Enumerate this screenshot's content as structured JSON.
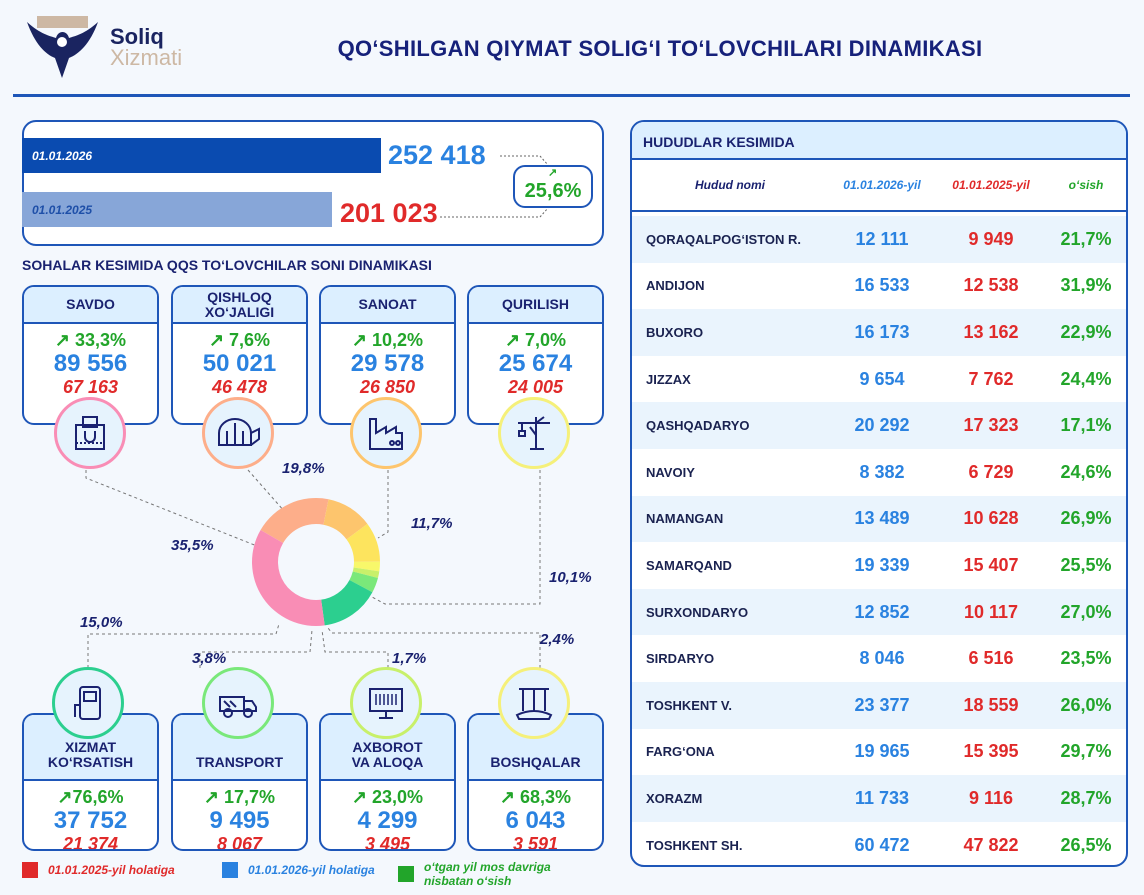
{
  "header": {
    "title": "QO‘SHILGAN QIYMAT SOLIG‘I TO‘LOVCHILARI DINAMIKASI",
    "logo": {
      "line1": "Soliq",
      "line2": "Xizmati"
    }
  },
  "summary": {
    "rows": [
      {
        "date": "01.01.2026",
        "value": "252 418",
        "amount": 252418
      },
      {
        "date": "01.01.2025",
        "value": "201 023",
        "amount": 201023
      }
    ],
    "growth": "25,6%"
  },
  "sectors_title": "SOHALAR KESIMIDA QQS TO‘LOVCHILAR SONI DINAMIKASI",
  "sectors": [
    {
      "name": "SAVDO",
      "growth": "33,3%",
      "value_2026": "89 556",
      "value_2025": "67 163",
      "share": "35,5%",
      "icon": "shopping-bag-icon",
      "color": "#f98db5"
    },
    {
      "name": "QISHLOQ XO‘JALIGI",
      "growth": "7,6%",
      "value_2026": "50 021",
      "value_2025": "46 478",
      "share": "19,8%",
      "icon": "greenhouse-icon",
      "color": "#fdae8a"
    },
    {
      "name": "SANOAT",
      "growth": "10,2%",
      "value_2026": "29 578",
      "value_2025": "26 850",
      "share": "11,7%",
      "icon": "factory-icon",
      "color": "#fdc56d"
    },
    {
      "name": "QURILISH",
      "growth": "7,0%",
      "value_2026": "25 674",
      "value_2025": "24 005",
      "share": "10,1%",
      "icon": "crane-icon",
      "color": "#fde45e"
    },
    {
      "name": "XIZMAT KO‘RSATISH",
      "growth": "76,6%",
      "value_2026": "37 752",
      "value_2025": "21 374",
      "share": "15,0%",
      "icon": "service-terminal-icon",
      "color": "#2ccf8f"
    },
    {
      "name": "TRANSPORT",
      "growth": "17,7%",
      "value_2026": "9 495",
      "value_2025": "8 067",
      "share": "3,8%",
      "icon": "truck-icon",
      "color": "#7ae87a"
    },
    {
      "name": "AXBOROT VA ALOQA",
      "growth": "23,0%",
      "value_2026": "4 299",
      "value_2025": "3 495",
      "share": "1,7%",
      "icon": "computer-icon",
      "color": "#c8f06a"
    },
    {
      "name": "BOSHQALAR",
      "growth": "68,3%",
      "value_2026": "6 043",
      "value_2025": "3 591",
      "share": "2,4%",
      "icon": "other-building-icon",
      "color": "#f8f86a"
    }
  ],
  "chart_data": {
    "type": "pie",
    "categories": [
      "QISHLOQ XO‘JALIGI",
      "SANOAT",
      "QURILISH",
      "BOSHQALAR",
      "AXBOROT VA ALOQA",
      "TRANSPORT",
      "XIZMAT KO‘RSATISH",
      "SAVDO"
    ],
    "values": [
      19.8,
      11.7,
      10.1,
      2.4,
      1.7,
      3.8,
      15.0,
      35.5
    ],
    "colors": [
      "#fdae8a",
      "#fdc56d",
      "#fde45e",
      "#f8f86a",
      "#c8f06a",
      "#7ae87a",
      "#2ccf8f",
      "#f98db5"
    ],
    "donut": true
  },
  "legend": [
    {
      "label": "01.01.2025-yil holatiga",
      "color": "#e02a2a"
    },
    {
      "label": "01.01.2026-yil holatiga",
      "color": "#2a82e0"
    },
    {
      "label": "o‘tgan yil mos davriga nisbatan o‘sish",
      "color": "#22a52a"
    }
  ],
  "regions": {
    "title": "HUDUDLAR KESIMIDA",
    "columns": [
      "Hudud nomi",
      "01.01.2026-yil",
      "01.01.2025-yil",
      "o‘sish"
    ],
    "rows": [
      {
        "name": "QORAQALPOG‘ISTON R.",
        "v2026": "12 111",
        "v2025": "9 949",
        "growth": "21,7%"
      },
      {
        "name": "ANDIJON",
        "v2026": "16 533",
        "v2025": "12 538",
        "growth": "31,9%"
      },
      {
        "name": "BUXORO",
        "v2026": "16 173",
        "v2025": "13 162",
        "growth": "22,9%"
      },
      {
        "name": "JIZZAX",
        "v2026": "9 654",
        "v2025": "7 762",
        "growth": "24,4%"
      },
      {
        "name": "QASHQADARYO",
        "v2026": "20 292",
        "v2025": "17 323",
        "growth": "17,1%"
      },
      {
        "name": "NAVOIY",
        "v2026": "8 382",
        "v2025": "6 729",
        "growth": "24,6%"
      },
      {
        "name": "NAMANGAN",
        "v2026": "13 489",
        "v2025": "10 628",
        "growth": "26,9%"
      },
      {
        "name": "SAMARQAND",
        "v2026": "19 339",
        "v2025": "15 407",
        "growth": "25,5%"
      },
      {
        "name": "SURXONDARYO",
        "v2026": "12 852",
        "v2025": "10 117",
        "growth": "27,0%"
      },
      {
        "name": "SIRDARYO",
        "v2026": "8 046",
        "v2025": "6 516",
        "growth": "23,5%"
      },
      {
        "name": "TOSHKENT V.",
        "v2026": "23 377",
        "v2025": "18 559",
        "growth": "26,0%"
      },
      {
        "name": "FARG‘ONA",
        "v2026": "19 965",
        "v2025": "15 395",
        "growth": "29,7%"
      },
      {
        "name": "XORAZM",
        "v2026": "11 733",
        "v2025": "9 116",
        "growth": "28,7%"
      },
      {
        "name": "TOSHKENT SH.",
        "v2026": "60 472",
        "v2025": "47 822",
        "growth": "26,5%"
      }
    ]
  }
}
